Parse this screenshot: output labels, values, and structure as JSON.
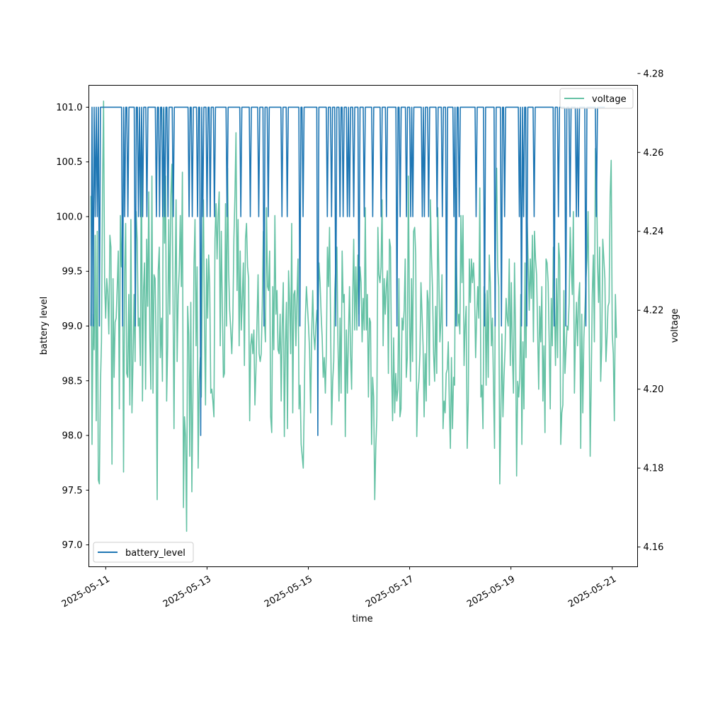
{
  "chart_data": {
    "type": "line",
    "x_axis": {
      "label": "time",
      "tick_labels": [
        "2025-05-11",
        "2025-05-13",
        "2025-05-15",
        "2025-05-17",
        "2025-05-19",
        "2025-05-21"
      ],
      "range": [
        "2025-05-10 16:00",
        "2025-05-21 12:00"
      ]
    },
    "y_left": {
      "label": "battery level",
      "range": [
        96.8,
        101.2
      ],
      "ticks": [
        97.0,
        97.5,
        98.0,
        98.5,
        99.0,
        99.5,
        100.0,
        100.5,
        101.0
      ],
      "tick_labels": [
        "97.0",
        "97.5",
        "98.0",
        "98.5",
        "99.0",
        "99.5",
        "100.0",
        "100.5",
        "101.0"
      ]
    },
    "y_right": {
      "label": "voltage",
      "range": [
        4.155,
        4.277
      ],
      "ticks": [
        4.16,
        4.18,
        4.2,
        4.22,
        4.24,
        4.26,
        4.28
      ],
      "tick_labels": [
        "4.16",
        "4.18",
        "4.20",
        "4.22",
        "4.24",
        "4.26",
        "4.28"
      ]
    },
    "series": [
      {
        "name": "battery_level",
        "axis": "left",
        "color": "#1f77b4",
        "start": "2025-05-10 17:00",
        "end": "2025-05-21 00:00",
        "step_minutes": 30,
        "values": [
          99,
          101,
          99,
          101,
          100,
          101,
          100,
          101,
          99,
          101,
          101,
          101,
          101,
          101,
          101,
          101,
          101,
          101,
          101,
          101,
          101,
          101,
          101,
          101,
          101,
          101,
          101,
          101,
          101,
          101,
          99,
          101,
          100,
          101,
          101,
          100,
          101,
          101,
          101,
          101,
          101,
          101,
          99,
          101,
          101,
          100,
          101,
          100,
          101,
          100,
          101,
          101,
          101,
          100,
          101,
          101,
          101,
          101,
          101,
          101,
          101,
          101,
          100,
          101,
          101,
          100,
          101,
          101,
          100,
          101,
          100,
          101,
          101,
          100,
          101,
          101,
          101,
          101,
          100,
          101,
          101,
          101,
          101,
          101,
          101,
          101,
          101,
          101,
          101,
          101,
          101,
          101,
          101,
          100,
          101,
          101,
          100,
          101,
          101,
          101,
          101,
          100,
          101,
          101,
          98,
          101,
          100,
          101,
          101,
          101,
          100,
          101,
          101,
          100,
          101,
          101,
          101,
          100,
          101,
          101,
          101,
          101,
          101,
          101,
          101,
          101,
          101,
          101,
          101,
          100,
          101,
          101,
          101,
          101,
          101,
          101,
          101,
          101,
          101,
          101,
          101,
          101,
          100,
          101,
          101,
          101,
          101,
          101,
          101,
          101,
          101,
          100,
          101,
          101,
          101,
          101,
          101,
          101,
          101,
          100,
          101,
          101,
          101,
          101,
          99,
          101,
          101,
          101,
          100,
          101,
          101,
          101,
          101,
          101,
          101,
          101,
          101,
          101,
          101,
          101,
          101,
          100,
          101,
          101,
          101,
          101,
          100,
          101,
          101,
          101,
          101,
          101,
          101,
          101,
          101,
          101,
          101,
          101,
          99,
          101,
          101,
          100,
          101,
          101,
          101,
          101,
          101,
          101,
          101,
          101,
          101,
          101,
          101,
          101,
          101,
          98,
          101,
          101,
          101,
          101,
          101,
          101,
          101,
          101,
          100,
          101,
          101,
          101,
          100,
          101,
          101,
          101,
          99,
          101,
          101,
          101,
          100,
          101,
          101,
          100,
          101,
          101,
          101,
          100,
          101,
          100,
          101,
          101,
          101,
          100,
          101,
          101,
          101,
          101,
          99,
          101,
          101,
          101,
          101,
          100,
          101,
          101,
          101,
          101,
          101,
          101,
          101,
          100,
          101,
          101,
          101,
          101,
          101,
          101,
          101,
          100,
          101,
          101,
          101,
          101,
          100,
          101,
          101,
          101,
          101,
          101,
          101,
          101,
          101,
          101,
          99,
          101,
          101,
          100,
          101,
          101,
          101,
          101,
          101,
          100,
          101,
          101,
          101,
          100,
          101,
          100,
          101,
          101,
          101,
          101,
          101,
          101,
          101,
          101,
          100,
          101,
          100,
          101,
          101,
          101,
          100,
          101,
          101,
          101,
          101,
          101,
          101,
          101,
          100,
          101,
          101,
          101,
          101,
          100,
          101,
          101,
          101,
          99,
          101,
          101,
          101,
          101,
          101,
          101,
          100,
          101,
          99,
          101,
          101,
          100,
          101,
          101,
          101,
          101,
          101,
          101,
          101,
          101,
          101,
          101,
          101,
          101,
          101,
          101,
          101,
          100,
          101,
          101,
          101,
          101,
          101,
          101,
          101,
          99,
          101,
          101,
          101,
          101,
          101,
          101,
          101,
          101,
          101,
          99,
          101,
          101,
          101,
          101,
          101,
          99,
          101,
          101,
          100,
          101,
          101,
          101,
          101,
          101,
          101,
          101,
          101,
          101,
          101,
          101,
          101,
          101,
          100,
          101,
          99,
          101,
          100,
          101,
          101,
          99,
          101,
          101,
          101,
          101,
          101,
          101,
          100,
          101,
          101,
          101,
          101,
          101,
          101,
          101,
          101,
          101,
          101,
          101,
          101,
          101,
          101,
          101,
          101,
          101,
          101,
          99,
          101,
          101,
          101,
          100,
          101,
          101,
          101,
          101,
          101,
          101,
          99,
          101,
          101,
          101,
          100,
          101,
          101,
          101,
          101,
          101,
          100,
          101,
          100,
          101,
          101,
          101,
          101,
          101,
          101,
          99,
          101,
          101,
          101,
          101,
          101,
          101,
          101,
          101,
          101,
          100,
          101,
          101,
          101,
          101,
          101,
          101,
          101,
          101
        ]
      },
      {
        "name": "voltage",
        "axis": "right",
        "color": "#66c2a5",
        "start": "2025-05-10 17:00",
        "end": "2025-05-21 02:00",
        "values": [
          4.249,
          4.186,
          4.219,
          4.21,
          4.239,
          4.192,
          4.24,
          4.177,
          4.176,
          4.201,
          4.212,
          4.251,
          4.273,
          4.227,
          4.218,
          4.228,
          4.224,
          4.214,
          4.239,
          4.236,
          4.181,
          4.228,
          4.203,
          4.217,
          4.218,
          4.226,
          4.235,
          4.195,
          4.244,
          4.231,
          4.24,
          4.179,
          4.229,
          4.242,
          4.204,
          4.203,
          4.224,
          4.196,
          4.243,
          4.194,
          4.207,
          4.224,
          4.207,
          4.245,
          4.238,
          4.216,
          4.218,
          4.206,
          4.264,
          4.197,
          4.225,
          4.232,
          4.2,
          4.238,
          4.221,
          4.25,
          4.213,
          4.2,
          4.254,
          4.199,
          4.229,
          4.228,
          4.212,
          4.172,
          4.23,
          4.236,
          4.208,
          4.218,
          4.202,
          4.271,
          4.237,
          4.254,
          4.197,
          4.211,
          4.243,
          4.219,
          4.249,
          4.257,
          4.226,
          4.19,
          4.225,
          4.248,
          4.207,
          4.224,
          4.23,
          4.244,
          4.226,
          4.255,
          4.17,
          4.193,
          4.188,
          4.164,
          4.221,
          4.214,
          4.183,
          4.222,
          4.174,
          4.198,
          4.231,
          4.243,
          4.211,
          4.231,
          4.18,
          4.202,
          4.208,
          4.198,
          4.231,
          4.248,
          4.216,
          4.196,
          4.233,
          4.218,
          4.234,
          4.226,
          4.199,
          4.2,
          4.197,
          4.193,
          4.238,
          4.247,
          4.233,
          4.244,
          4.25,
          4.211,
          4.24,
          4.221,
          4.203,
          4.204,
          4.247,
          4.216,
          4.256,
          4.23,
          4.22,
          4.215,
          4.209,
          4.218,
          4.238,
          4.249,
          4.265,
          4.225,
          4.243,
          4.211,
          4.235,
          4.215,
          4.223,
          4.232,
          4.206,
          4.238,
          4.242,
          4.231,
          4.228,
          4.192,
          4.211,
          4.214,
          4.209,
          4.215,
          4.196,
          4.205,
          4.217,
          4.229,
          4.209,
          4.207,
          4.209,
          4.221,
          4.24,
          4.218,
          4.212,
          4.246,
          4.226,
          4.225,
          4.235,
          4.193,
          4.189,
          4.226,
          4.21,
          4.244,
          4.219,
          4.225,
          4.21,
          4.209,
          4.219,
          4.197,
          4.216,
          4.227,
          4.188,
          4.211,
          4.222,
          4.19,
          4.23,
          4.222,
          4.209,
          4.242,
          4.194,
          4.224,
          4.225,
          4.211,
          4.223,
          4.233,
          4.195,
          4.201,
          4.186,
          4.183,
          4.18,
          4.198,
          4.218,
          4.226,
          4.221,
          4.216,
          4.21,
          4.194,
          4.214,
          4.225,
          4.214,
          4.21,
          4.216,
          4.22,
          4.219,
          4.232,
          4.227,
          4.219,
          4.213,
          4.203,
          4.208,
          4.199,
          4.21,
          4.236,
          4.226,
          4.241,
          4.217,
          4.191,
          4.202,
          4.207,
          4.225,
          4.232,
          4.236,
          4.212,
          4.197,
          4.218,
          4.199,
          4.235,
          4.222,
          4.224,
          4.188,
          4.215,
          4.199,
          4.213,
          4.226,
          4.209,
          4.2,
          4.222,
          4.238,
          4.215,
          4.231,
          4.215,
          4.234,
          4.219,
          4.231,
          4.227,
          4.212,
          4.223,
          4.215,
          4.246,
          4.215,
          4.224,
          4.198,
          4.218,
          4.217,
          4.186,
          4.203,
          4.198,
          4.172,
          4.185,
          4.193,
          4.241,
          4.229,
          4.227,
          4.231,
          4.248,
          4.211,
          4.228,
          4.219,
          4.226,
          4.23,
          4.204,
          4.238,
          4.236,
          4.206,
          4.192,
          4.213,
          4.194,
          4.204,
          4.197,
          4.2,
          4.228,
          4.193,
          4.195,
          4.218,
          4.215,
          4.22,
          4.233,
          4.203,
          4.208,
          4.254,
          4.221,
          4.202,
          4.228,
          4.207,
          4.24,
          4.241,
          4.234,
          4.188,
          4.199,
          4.202,
          4.209,
          4.227,
          4.219,
          4.211,
          4.193,
          4.209,
          4.197,
          4.225,
          4.222,
          4.201,
          4.248,
          4.234,
          4.225,
          4.209,
          4.202,
          4.221,
          4.204,
          4.246,
          4.229,
          4.212,
          4.217,
          4.229,
          4.19,
          4.197,
          4.194,
          4.204,
          4.205,
          4.212,
          4.196,
          4.185,
          4.208,
          4.19,
          4.203,
          4.201,
          4.251,
          4.229,
          4.216,
          4.219,
          4.214,
          4.244,
          4.227,
          4.244,
          4.206,
          4.216,
          4.221,
          4.185,
          4.197,
          4.233,
          4.222,
          4.233,
          4.227,
          4.232,
          4.225,
          4.208,
          4.218,
          4.226,
          4.218,
          4.251,
          4.198,
          4.201,
          4.19,
          4.226,
          4.224,
          4.201,
          4.225,
          4.203,
          4.234,
          4.227,
          4.211,
          4.218,
          4.201,
          4.185,
          4.245,
          4.256,
          4.231,
          4.226,
          4.176,
          4.194,
          4.214,
          4.193,
          4.203,
          4.21,
          4.223,
          4.218,
          4.216,
          4.233,
          4.206,
          4.227,
          4.209,
          4.199,
          4.232,
          4.214,
          4.178,
          4.202,
          4.198,
          4.203,
          4.224,
          4.186,
          4.212,
          4.195,
          4.232,
          4.208,
          4.244,
          4.232,
          4.22,
          4.233,
          4.223,
          4.239,
          4.212,
          4.24,
          4.233,
          4.229,
          4.215,
          4.2,
          4.221,
          4.212,
          4.226,
          4.197,
          4.211,
          4.189,
          4.233,
          4.232,
          4.227,
          4.212,
          4.195,
          4.223,
          4.211,
          4.236,
          4.222,
          4.206,
          4.228,
          4.208,
          4.237,
          4.233,
          4.186,
          4.194,
          4.196,
          4.225,
          4.204,
          4.21,
          4.216,
          4.215,
          4.222,
          4.241,
          4.231,
          4.224,
          4.245,
          4.199,
          4.214,
          4.222,
          4.211,
          4.223,
          4.227,
          4.185,
          4.219,
          4.194,
          4.213,
          4.22,
          4.228,
          4.233,
          4.245,
          4.218,
          4.183,
          4.202,
          4.224,
          4.234,
          4.212,
          4.261,
          4.257,
          4.232,
          4.222,
          4.236,
          4.202,
          4.211,
          4.238,
          4.233,
          4.228,
          4.207,
          4.213,
          4.221,
          4.222,
          4.249,
          4.258,
          4.214,
          4.209,
          4.192,
          4.224,
          4.213
        ]
      }
    ],
    "legends": [
      {
        "series": "battery_level",
        "placement": "lower-left"
      },
      {
        "series": "voltage",
        "placement": "upper-right"
      }
    ],
    "grid": false
  }
}
